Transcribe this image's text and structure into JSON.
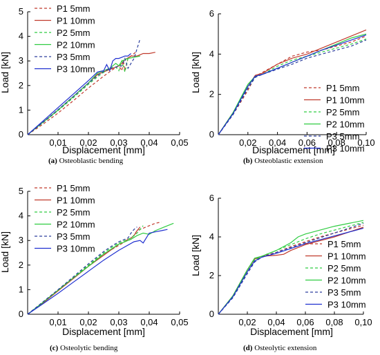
{
  "chart_data": [
    {
      "type": "line",
      "caption_label": "(a)",
      "caption_text": "Osteoblastic bending",
      "xlabel": "Displacement [mm]",
      "ylabel": "Load [kN]",
      "xlim": [
        0,
        0.05
      ],
      "ylim": [
        0,
        5
      ],
      "xticks": [
        "0,01",
        "0,02",
        "0,03",
        "0,04",
        "0,05"
      ],
      "yticks": [
        "0",
        "1",
        "2",
        "3",
        "4",
        "5"
      ],
      "legend_position": "top-left",
      "series": [
        {
          "name": "P1 5mm",
          "color": "#c0392b",
          "dash": true,
          "x": [
            0,
            0.005,
            0.01,
            0.015,
            0.02,
            0.025,
            0.028,
            0.03,
            0.031,
            0.0315,
            0.032,
            0.033,
            0.034,
            0.035,
            0.036
          ],
          "y": [
            0,
            0.42,
            0.88,
            1.38,
            1.9,
            2.38,
            2.65,
            2.8,
            2.6,
            3.0,
            2.6,
            3.1,
            3.2,
            3.3,
            3.4
          ]
        },
        {
          "name": "P1 10mm",
          "color": "#c0392b",
          "dash": false,
          "x": [
            0,
            0.005,
            0.01,
            0.015,
            0.02,
            0.023,
            0.025,
            0.027,
            0.028,
            0.029,
            0.03,
            0.031,
            0.032,
            0.034,
            0.036,
            0.038,
            0.04,
            0.042
          ],
          "y": [
            0,
            0.5,
            1.0,
            1.55,
            2.1,
            2.45,
            2.55,
            2.65,
            2.7,
            2.75,
            2.8,
            2.9,
            3.05,
            3.2,
            3.2,
            3.3,
            3.3,
            3.35
          ]
        },
        {
          "name": "P2 5mm",
          "color": "#2ecc40",
          "dash": true,
          "x": [
            0,
            0.005,
            0.01,
            0.015,
            0.02,
            0.024,
            0.027,
            0.029,
            0.03,
            0.031,
            0.032,
            0.033
          ],
          "y": [
            0,
            0.48,
            0.98,
            1.5,
            2.05,
            2.45,
            2.7,
            2.75,
            2.6,
            3.0,
            2.55,
            3.1
          ]
        },
        {
          "name": "P2 10mm",
          "color": "#2ecc40",
          "dash": false,
          "x": [
            0,
            0.005,
            0.01,
            0.015,
            0.02,
            0.023,
            0.025,
            0.027,
            0.028,
            0.029,
            0.03,
            0.031,
            0.032,
            0.033,
            0.035,
            0.037
          ],
          "y": [
            0,
            0.5,
            1.0,
            1.55,
            2.1,
            2.5,
            2.6,
            2.7,
            2.8,
            2.9,
            2.8,
            3.0,
            3.05,
            3.1,
            3.15,
            3.2
          ]
        },
        {
          "name": "P3 5mm",
          "color": "#2c3e9e",
          "dash": true,
          "x": [
            0,
            0.005,
            0.01,
            0.015,
            0.02,
            0.024,
            0.027,
            0.029,
            0.031,
            0.032,
            0.033,
            0.035,
            0.036,
            0.037
          ],
          "y": [
            0,
            0.5,
            1.02,
            1.55,
            2.1,
            2.5,
            2.7,
            2.75,
            2.8,
            3.1,
            2.7,
            3.1,
            3.5,
            3.9
          ]
        },
        {
          "name": "P3 10mm",
          "color": "#1f2fd0",
          "dash": false,
          "x": [
            0,
            0.005,
            0.01,
            0.015,
            0.02,
            0.023,
            0.025,
            0.026,
            0.027,
            0.028,
            0.029,
            0.03,
            0.031,
            0.032,
            0.033,
            0.034
          ],
          "y": [
            0,
            0.55,
            1.1,
            1.65,
            2.2,
            2.55,
            2.6,
            2.85,
            2.6,
            3.0,
            3.1,
            3.1,
            3.15,
            3.2,
            3.2,
            3.3
          ]
        }
      ]
    },
    {
      "type": "line",
      "caption_label": "(b)",
      "caption_text": "Osteoblastic extension",
      "xlabel": "Displacement [mm]",
      "ylabel": "Load [kN]",
      "xlim": [
        0,
        0.1
      ],
      "ylim": [
        0,
        6
      ],
      "xticks": [
        "0,02",
        "0,04",
        "0,06",
        "0,08",
        "0,10"
      ],
      "yticks": [
        "0",
        "2",
        "4",
        "6"
      ],
      "legend_position": "bottom-right",
      "series": [
        {
          "name": "P1 5mm",
          "color": "#c0392b",
          "dash": true,
          "x": [
            0,
            0.01,
            0.02,
            0.025,
            0.03,
            0.04,
            0.05,
            0.06,
            0.07,
            0.08,
            0.09,
            0.1
          ],
          "y": [
            0,
            1.0,
            2.2,
            2.9,
            3.1,
            3.5,
            3.9,
            4.1,
            4.2,
            4.4,
            4.6,
            4.9
          ]
        },
        {
          "name": "P1 10mm",
          "color": "#c0392b",
          "dash": false,
          "x": [
            0,
            0.01,
            0.02,
            0.025,
            0.03,
            0.04,
            0.05,
            0.06,
            0.07,
            0.08,
            0.09,
            0.1
          ],
          "y": [
            0,
            1.1,
            2.4,
            2.95,
            3.05,
            3.5,
            3.8,
            4.0,
            4.3,
            4.6,
            4.9,
            5.2
          ]
        },
        {
          "name": "P2 5mm",
          "color": "#2ecc40",
          "dash": true,
          "x": [
            0,
            0.01,
            0.02,
            0.025,
            0.03,
            0.04,
            0.05,
            0.06,
            0.07,
            0.08,
            0.09,
            0.1
          ],
          "y": [
            0,
            1.05,
            2.3,
            2.85,
            3.0,
            3.4,
            3.7,
            3.9,
            4.1,
            4.3,
            4.5,
            4.75
          ]
        },
        {
          "name": "P2 10mm",
          "color": "#2ecc40",
          "dash": false,
          "x": [
            0,
            0.01,
            0.02,
            0.025,
            0.03,
            0.04,
            0.05,
            0.06,
            0.07,
            0.08,
            0.09,
            0.1
          ],
          "y": [
            0,
            1.1,
            2.5,
            2.9,
            3.0,
            3.3,
            3.6,
            3.9,
            4.2,
            4.5,
            4.8,
            5.0
          ]
        },
        {
          "name": "P3 5mm",
          "color": "#2c3e9e",
          "dash": true,
          "x": [
            0,
            0.01,
            0.02,
            0.025,
            0.03,
            0.04,
            0.05,
            0.06,
            0.07,
            0.08,
            0.09,
            0.1
          ],
          "y": [
            0,
            1.0,
            2.3,
            2.85,
            3.0,
            3.25,
            3.5,
            3.8,
            4.0,
            4.2,
            4.4,
            4.7
          ]
        },
        {
          "name": "P3 10mm",
          "color": "#1f2fd0",
          "dash": false,
          "x": [
            0,
            0.01,
            0.02,
            0.025,
            0.03,
            0.04,
            0.05,
            0.06,
            0.07,
            0.08,
            0.09,
            0.1
          ],
          "y": [
            0,
            1.05,
            2.4,
            2.9,
            3.0,
            3.3,
            3.6,
            3.9,
            4.2,
            4.45,
            4.7,
            4.95
          ]
        }
      ]
    },
    {
      "type": "line",
      "caption_label": "(c)",
      "caption_text": "Osteolytic bending",
      "xlabel": "Displacement [mm]",
      "ylabel": "Load [kN]",
      "xlim": [
        0,
        0.05
      ],
      "ylim": [
        0,
        5
      ],
      "xticks": [
        "0,01",
        "0,02",
        "0,03",
        "0,04",
        "0,05"
      ],
      "yticks": [
        "0",
        "1",
        "2",
        "3",
        "4",
        "5"
      ],
      "legend_position": "top-left",
      "series": [
        {
          "name": "P1 5mm",
          "color": "#c0392b",
          "dash": true,
          "x": [
            0,
            0.005,
            0.01,
            0.015,
            0.02,
            0.025,
            0.03,
            0.032,
            0.034,
            0.036,
            0.038,
            0.04,
            0.042,
            0.044
          ],
          "y": [
            0,
            0.48,
            0.98,
            1.48,
            1.98,
            2.45,
            2.8,
            2.95,
            3.05,
            3.4,
            3.5,
            3.6,
            3.7,
            3.75
          ]
        },
        {
          "name": "P1 10mm",
          "color": "#c0392b",
          "dash": false,
          "x": [
            0,
            0.005,
            0.01,
            0.015,
            0.02,
            0.025,
            0.03,
            0.032,
            0.033,
            0.034,
            0.035,
            0.036,
            0.037
          ],
          "y": [
            0,
            0.45,
            0.95,
            1.45,
            1.95,
            2.4,
            2.85,
            2.95,
            3.05,
            3.1,
            3.2,
            3.4,
            3.55
          ]
        },
        {
          "name": "P2 5mm",
          "color": "#2ecc40",
          "dash": true,
          "x": [
            0,
            0.005,
            0.01,
            0.015,
            0.02,
            0.025,
            0.028,
            0.03,
            0.032,
            0.034,
            0.036,
            0.038
          ],
          "y": [
            0,
            0.48,
            0.98,
            1.5,
            2.0,
            2.5,
            2.75,
            2.9,
            3.0,
            3.1,
            3.3,
            3.6
          ]
        },
        {
          "name": "P2 10mm",
          "color": "#2ecc40",
          "dash": false,
          "x": [
            0,
            0.005,
            0.01,
            0.015,
            0.02,
            0.025,
            0.03,
            0.034,
            0.036,
            0.038,
            0.04,
            0.042,
            0.045,
            0.048
          ],
          "y": [
            0,
            0.48,
            0.98,
            1.48,
            1.95,
            2.45,
            2.85,
            3.05,
            3.2,
            3.3,
            3.25,
            3.4,
            3.55,
            3.7
          ]
        },
        {
          "name": "P3 5mm",
          "color": "#2c3e9e",
          "dash": true,
          "x": [
            0,
            0.005,
            0.01,
            0.015,
            0.02,
            0.025,
            0.028,
            0.03,
            0.032,
            0.033,
            0.034,
            0.035,
            0.036
          ],
          "y": [
            0,
            0.5,
            1.0,
            1.52,
            2.05,
            2.55,
            2.8,
            2.95,
            3.05,
            3.1,
            3.3,
            3.45,
            3.55
          ]
        },
        {
          "name": "P3 10mm",
          "color": "#1f2fd0",
          "dash": false,
          "x": [
            0,
            0.005,
            0.01,
            0.015,
            0.02,
            0.025,
            0.03,
            0.035,
            0.037,
            0.038,
            0.04,
            0.042,
            0.044,
            0.046
          ],
          "y": [
            0,
            0.42,
            0.85,
            1.3,
            1.75,
            2.2,
            2.6,
            2.95,
            3.0,
            2.9,
            3.3,
            3.35,
            3.4,
            3.45
          ]
        }
      ]
    },
    {
      "type": "line",
      "caption_label": "(d)",
      "caption_text": "Osteolytic extension",
      "xlabel": "Displacement [mm]",
      "ylabel": "Load [kN]",
      "xlim": [
        0,
        0.1
      ],
      "ylim": [
        0,
        6
      ],
      "xticks": [
        "0,02",
        "0,04",
        "0,06",
        "0,08",
        "0,10"
      ],
      "yticks": [
        "0",
        "2",
        "4",
        "6"
      ],
      "legend_position": "bottom-right",
      "series": [
        {
          "name": "P1 5mm",
          "color": "#c0392b",
          "dash": true,
          "x": [
            0,
            0.01,
            0.02,
            0.025,
            0.03,
            0.04,
            0.05,
            0.06,
            0.07,
            0.08,
            0.09,
            0.1
          ],
          "y": [
            0,
            0.9,
            2.2,
            2.75,
            3.0,
            3.2,
            3.5,
            3.75,
            4.0,
            4.2,
            4.4,
            4.6
          ]
        },
        {
          "name": "P1 10mm",
          "color": "#c0392b",
          "dash": false,
          "x": [
            0,
            0.01,
            0.02,
            0.025,
            0.03,
            0.04,
            0.045,
            0.05,
            0.06,
            0.07,
            0.08,
            0.09,
            0.1
          ],
          "y": [
            0,
            0.95,
            2.3,
            2.85,
            3.0,
            3.05,
            3.1,
            3.3,
            3.6,
            3.8,
            4.0,
            4.25,
            4.5
          ]
        },
        {
          "name": "P2 5mm",
          "color": "#2ecc40",
          "dash": true,
          "x": [
            0,
            0.01,
            0.02,
            0.025,
            0.03,
            0.04,
            0.05,
            0.06,
            0.07,
            0.08,
            0.09,
            0.1
          ],
          "y": [
            0,
            0.9,
            2.2,
            2.8,
            3.0,
            3.3,
            3.6,
            3.9,
            4.15,
            4.35,
            4.55,
            4.75
          ]
        },
        {
          "name": "P2 10mm",
          "color": "#2ecc40",
          "dash": false,
          "x": [
            0,
            0.01,
            0.02,
            0.025,
            0.03,
            0.04,
            0.05,
            0.055,
            0.06,
            0.07,
            0.08,
            0.09,
            0.1
          ],
          "y": [
            0,
            0.95,
            2.3,
            2.9,
            3.0,
            3.3,
            3.7,
            4.0,
            4.15,
            4.35,
            4.55,
            4.7,
            4.85
          ]
        },
        {
          "name": "P3 5mm",
          "color": "#2c3e9e",
          "dash": true,
          "x": [
            0,
            0.01,
            0.02,
            0.025,
            0.03,
            0.04,
            0.05,
            0.06,
            0.07,
            0.08,
            0.09,
            0.1
          ],
          "y": [
            0,
            0.85,
            2.1,
            2.7,
            2.95,
            3.2,
            3.45,
            3.7,
            3.95,
            4.2,
            4.45,
            4.7
          ]
        },
        {
          "name": "P3 10mm",
          "color": "#1f2fd0",
          "dash": false,
          "x": [
            0,
            0.01,
            0.02,
            0.025,
            0.03,
            0.04,
            0.05,
            0.06,
            0.07,
            0.08,
            0.09,
            0.1
          ],
          "y": [
            0,
            0.9,
            2.2,
            2.75,
            2.95,
            3.15,
            3.4,
            3.65,
            3.85,
            4.05,
            4.25,
            4.45
          ]
        }
      ]
    }
  ]
}
